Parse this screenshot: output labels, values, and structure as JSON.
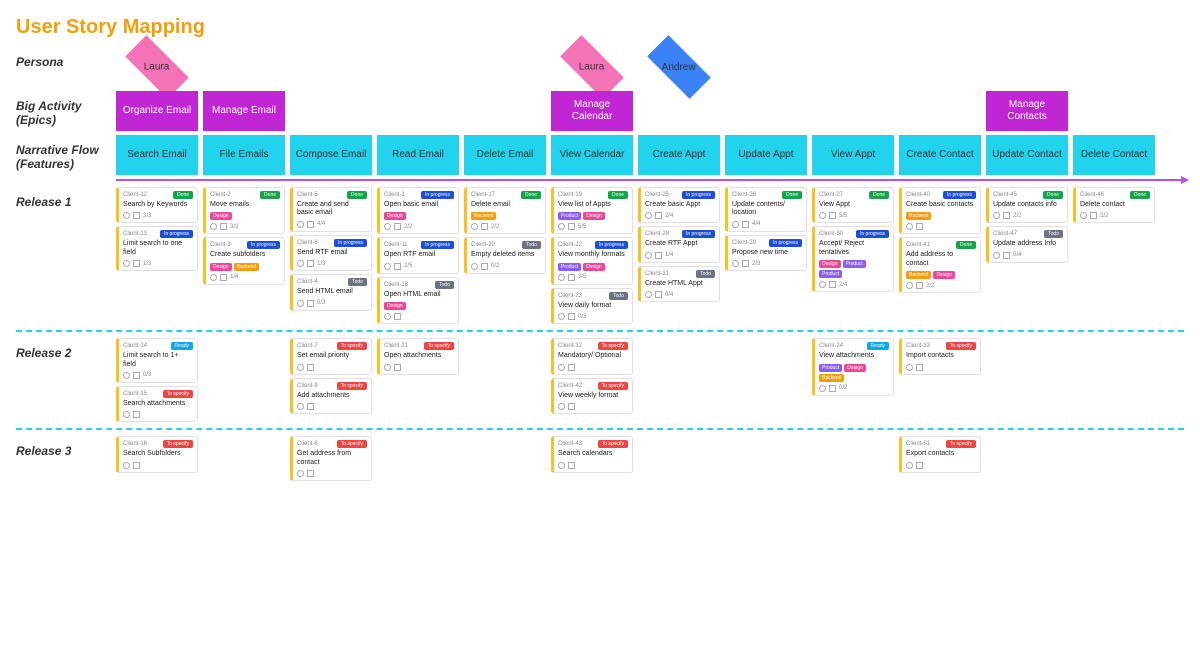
{
  "title": "User Story Mapping",
  "title_color": "#f59e0b",
  "labels": {
    "persona": "Persona",
    "epics": "Big Activity (Epics)",
    "features": "Narrative Flow (Features)",
    "release1": "Release 1",
    "release2": "Release 2",
    "release3": "Release 3"
  },
  "colors": {
    "diamond_pink": "#f472b6",
    "diamond_blue": "#3b82f6",
    "epic_purple": "#c026d3",
    "feature_cyan": "#22d3ee",
    "arrow": "#a855f7",
    "separator": "#22d3ee",
    "card_border": "#fbbf24",
    "status_done": "#16a34a",
    "status_progress": "#1d4ed8",
    "status_todo": "#6b7280",
    "status_ready": "#0ea5e9",
    "status_specify": "#ef4444",
    "tag_design": "#ec4899",
    "tag_product": "#8b5cf6",
    "tag_backend": "#f59e0b"
  },
  "personas": [
    {
      "name": "Laura",
      "col": 0,
      "color": "pink"
    },
    {
      "name": "Laura",
      "col": 5,
      "color": "pink",
      "pair": true
    },
    {
      "name": "Andrew",
      "col": 5,
      "color": "blue",
      "pair_right": true
    }
  ],
  "epics": [
    {
      "label": "Organize Email",
      "col": 0
    },
    {
      "label": "Manage Email",
      "col": 1
    },
    {
      "label": "Manage Calendar",
      "col": 5
    },
    {
      "label": "Manage Contacts",
      "col": 10
    }
  ],
  "features": [
    "Search Email",
    "File Emails",
    "Compose Email",
    "Read Email",
    "Delete Email",
    "View Calendar",
    "Create Appt",
    "Update Appt",
    "View Appt",
    "Create Contact",
    "Update Contact",
    "Delete Contact"
  ],
  "status_map": {
    "Done": "status_done",
    "In progress": "status_progress",
    "Todo": "status_todo",
    "Ready": "status_ready",
    "To specify": "status_specify"
  },
  "tag_map": {
    "Design": "tag_design",
    "Product": "tag_product",
    "Backend": "tag_backend"
  },
  "releases": [
    {
      "name": "release1",
      "cols": [
        [
          {
            "id": "Client-12",
            "title": "Search by Keywords",
            "status": "Done",
            "tags": [],
            "foot": "3/3"
          },
          {
            "id": "Client-13",
            "title": "Limit search to one field",
            "status": "In progress",
            "tags": [],
            "foot": "1/3"
          }
        ],
        [
          {
            "id": "Client-2",
            "title": "Move emails",
            "status": "Done",
            "tags": [
              "Design"
            ],
            "foot": "3/3"
          },
          {
            "id": "Client-3",
            "title": "Create subfolders",
            "status": "In progress",
            "tags": [
              "Design",
              "Backend"
            ],
            "foot": "1/4"
          }
        ],
        [
          {
            "id": "Client-5",
            "title": "Create and send basic email",
            "status": "Done",
            "tags": [],
            "foot": "4/4"
          },
          {
            "id": "Client-8",
            "title": "Send RTF email",
            "status": "In progress",
            "tags": [],
            "foot": "1/3"
          },
          {
            "id": "Client-4",
            "title": "Send HTML email",
            "status": "Todo",
            "tags": [],
            "foot": "0/3"
          }
        ],
        [
          {
            "id": "Client-1",
            "title": "Open basic email",
            "status": "In progress",
            "tags": [
              "Design"
            ],
            "foot": "2/2"
          },
          {
            "id": "Client-11",
            "title": "Open RTF email",
            "status": "In progress",
            "tags": [],
            "foot": "2/5"
          },
          {
            "id": "Client-18",
            "title": "Open HTML email",
            "status": "Todo",
            "tags": [
              "Design"
            ],
            "foot": ""
          }
        ],
        [
          {
            "id": "Client-17",
            "title": "Delete email",
            "status": "Done",
            "tags": [
              "Backend"
            ],
            "foot": "2/2"
          },
          {
            "id": "Client-20",
            "title": "Empty deleted items",
            "status": "Todo",
            "tags": [],
            "foot": "0/2"
          }
        ],
        [
          {
            "id": "Client-19",
            "title": "View list of Appts",
            "status": "Done",
            "tags": [
              "Product",
              "Design"
            ],
            "foot": "5/5"
          },
          {
            "id": "Client-22",
            "title": "View monthly formats",
            "status": "In progress",
            "tags": [
              "Product",
              "Design"
            ],
            "foot": "3/5"
          },
          {
            "id": "Client-23",
            "title": "View daily format",
            "status": "Todo",
            "tags": [],
            "foot": "0/3"
          }
        ],
        [
          {
            "id": "Client-25",
            "title": "Create basic Appt",
            "status": "In progress",
            "tags": [],
            "foot": "2/4"
          },
          {
            "id": "Client-28",
            "title": "Create RTF Appt",
            "status": "In progress",
            "tags": [],
            "foot": "1/4"
          },
          {
            "id": "Client-31",
            "title": "Create HTML Appt",
            "status": "Todo",
            "tags": [],
            "foot": "0/4"
          }
        ],
        [
          {
            "id": "Client-26",
            "title": "Update contents/ location",
            "status": "Done",
            "tags": [],
            "foot": "4/4"
          },
          {
            "id": "Client-29",
            "title": "Propose new time",
            "status": "In progress",
            "tags": [],
            "foot": "2/3"
          }
        ],
        [
          {
            "id": "Client-27",
            "title": "View Appt",
            "status": "Done",
            "tags": [],
            "foot": "5/5"
          },
          {
            "id": "Client-30",
            "title": "Accept/ Reject tentatives",
            "status": "In progress",
            "tags": [
              "Design",
              "Product",
              "Product"
            ],
            "foot": "2/4"
          }
        ],
        [
          {
            "id": "Client-40",
            "title": "Create basic contacts",
            "status": "In progress",
            "tags": [
              "Backend"
            ],
            "foot": ""
          },
          {
            "id": "Client-41",
            "title": "Add address to contact",
            "status": "Done",
            "tags": [
              "Backend",
              "Design"
            ],
            "foot": "2/2"
          }
        ],
        [
          {
            "id": "Client-45",
            "title": "Update contacts info",
            "status": "Done",
            "tags": [],
            "foot": "2/2"
          },
          {
            "id": "Client-47",
            "title": "Update address Info",
            "status": "Todo",
            "tags": [],
            "foot": "0/4"
          }
        ],
        [
          {
            "id": "Client-46",
            "title": "Delete contact",
            "status": "Done",
            "tags": [],
            "foot": "2/2"
          }
        ]
      ]
    },
    {
      "name": "release2",
      "cols": [
        [
          {
            "id": "Client-14",
            "title": "Limit search to 1+ field",
            "status": "Ready",
            "tags": [],
            "foot": "0/3"
          },
          {
            "id": "Client-15",
            "title": "Search attachments",
            "status": "To specify",
            "tags": [],
            "foot": ""
          }
        ],
        [],
        [
          {
            "id": "Client-7",
            "title": "Set email priority",
            "status": "To specify",
            "tags": [],
            "foot": ""
          },
          {
            "id": "Client-9",
            "title": "Add attachments",
            "status": "To specify",
            "tags": [],
            "foot": ""
          }
        ],
        [
          {
            "id": "Client-21",
            "title": "Open attachments",
            "status": "To specify",
            "tags": [],
            "foot": ""
          }
        ],
        [],
        [
          {
            "id": "Client-32",
            "title": "Mandatory/ Optional",
            "status": "To specify",
            "tags": [],
            "foot": ""
          },
          {
            "id": "Client-42",
            "title": "View weekly format",
            "status": "To specify",
            "tags": [],
            "foot": ""
          }
        ],
        [],
        [],
        [
          {
            "id": "Client-24",
            "title": "View attachments",
            "status": "Ready",
            "tags": [
              "Product",
              "Design",
              "Backend"
            ],
            "foot": "0/2"
          }
        ],
        [
          {
            "id": "Client-33",
            "title": "Import contacts",
            "status": "To specify",
            "tags": [],
            "foot": ""
          }
        ],
        [],
        []
      ]
    },
    {
      "name": "release3",
      "cols": [
        [
          {
            "id": "Client-16",
            "title": "Search Subfolders",
            "status": "To specify",
            "tags": [],
            "foot": ""
          }
        ],
        [],
        [
          {
            "id": "Client-6",
            "title": "Get address from contact",
            "status": "To specify",
            "tags": [],
            "foot": ""
          }
        ],
        [],
        [],
        [
          {
            "id": "Client-43",
            "title": "Search calendars",
            "status": "To specify",
            "tags": [],
            "foot": ""
          }
        ],
        [],
        [],
        [],
        [
          {
            "id": "Client-51",
            "title": "Export contacts",
            "status": "To specify",
            "tags": [],
            "foot": ""
          }
        ],
        [],
        []
      ]
    }
  ]
}
